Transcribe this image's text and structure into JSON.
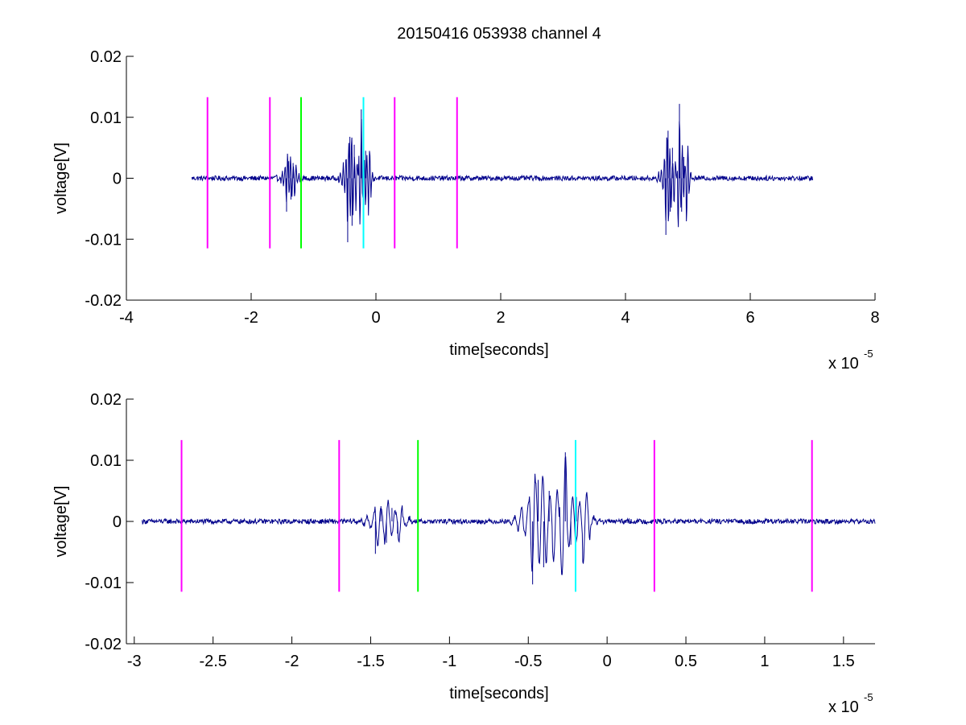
{
  "figure": {
    "title": "20150416 053938 channel 4"
  },
  "chart_data": [
    {
      "type": "line",
      "title": "20150416 053938 channel 4",
      "xlabel": "time[seconds]",
      "ylabel": "voltage[V]",
      "x_multiplier_label": "x 10",
      "x_multiplier_exponent": "-5",
      "x_scale": 1e-05,
      "xlim": [
        -4,
        8
      ],
      "ylim": [
        -0.02,
        0.02
      ],
      "x_ticks": [
        -4,
        -2,
        0,
        2,
        4,
        6,
        8
      ],
      "x_tick_labels": [
        "-4",
        "-2",
        "0",
        "2",
        "4",
        "6",
        "8"
      ],
      "y_ticks": [
        -0.02,
        -0.01,
        0,
        0.01,
        0.02
      ],
      "y_tick_labels": [
        "-0.02",
        "-0.01",
        "0",
        "0.01",
        "0.02"
      ],
      "series": [
        {
          "color": "#00008b",
          "x_range": [
            -2.95,
            7.0
          ],
          "baseline": 0,
          "noise_amplitude": 0.0004,
          "bursts": [
            {
              "x": -1.38,
              "peaks": [
                -0.0055,
                0.0028,
                -0.0035,
                0.0025
              ]
            },
            {
              "x": -0.4,
              "peaks": [
                -0.0105,
                0.0068,
                -0.0078,
                0.0055
              ]
            },
            {
              "x": -0.2,
              "peaks": [
                0.0113,
                -0.0035,
                0.0045
              ]
            },
            {
              "x": 4.7,
              "peaks": [
                -0.0093,
                0.0078,
                -0.0055,
                0.005
              ]
            },
            {
              "x": 4.9,
              "peaks": [
                0.0122,
                -0.0055,
                0.0035
              ]
            }
          ]
        }
      ],
      "markers": [
        {
          "x": -2.7,
          "color": "#ff00ff",
          "y_range": [
            -0.0115,
            0.0133
          ]
        },
        {
          "x": -1.7,
          "color": "#ff00ff",
          "y_range": [
            -0.0115,
            0.0133
          ]
        },
        {
          "x": -1.2,
          "color": "#00ff00",
          "y_range": [
            -0.0115,
            0.0133
          ]
        },
        {
          "x": -0.2,
          "color": "#00ffff",
          "y_range": [
            -0.0115,
            0.0133
          ]
        },
        {
          "x": 0.3,
          "color": "#ff00ff",
          "y_range": [
            -0.0115,
            0.0133
          ]
        },
        {
          "x": 1.3,
          "color": "#ff00ff",
          "y_range": [
            -0.0115,
            0.0133
          ]
        }
      ]
    },
    {
      "type": "line",
      "title": "",
      "xlabel": "time[seconds]",
      "ylabel": "voltage[V]",
      "x_multiplier_label": "x 10",
      "x_multiplier_exponent": "-5",
      "x_scale": 1e-05,
      "xlim": [
        -3.05,
        1.7
      ],
      "ylim": [
        -0.02,
        0.02
      ],
      "x_ticks": [
        -3,
        -2.5,
        -2,
        -1.5,
        -1,
        -0.5,
        0,
        0.5,
        1,
        1.5
      ],
      "x_tick_labels": [
        "-3",
        "-2.5",
        "-2",
        "-1.5",
        "-1",
        "-0.5",
        "0",
        "0.5",
        "1",
        "1.5"
      ],
      "y_ticks": [
        -0.02,
        -0.01,
        0,
        0.01,
        0.02
      ],
      "y_tick_labels": [
        "-0.02",
        "-0.01",
        "0",
        "0.01",
        "0.02"
      ],
      "series": [
        {
          "color": "#00008b",
          "x_range": [
            -2.95,
            1.7
          ],
          "baseline": 0,
          "noise_amplitude": 0.0004,
          "bursts": [
            {
              "x": -1.4,
              "peaks": [
                -0.0053,
                0.0025,
                -0.0035,
                0.0022,
                -0.002
              ]
            },
            {
              "x": -0.42,
              "peaks": [
                -0.0103,
                0.0068,
                -0.0075,
                0.005
              ]
            },
            {
              "x": -0.23,
              "peaks": [
                0.0113,
                -0.0038,
                0.004
              ]
            }
          ]
        }
      ],
      "markers": [
        {
          "x": -2.7,
          "color": "#ff00ff",
          "y_range": [
            -0.0115,
            0.0133
          ]
        },
        {
          "x": -1.7,
          "color": "#ff00ff",
          "y_range": [
            -0.0115,
            0.0133
          ]
        },
        {
          "x": -1.2,
          "color": "#00ff00",
          "y_range": [
            -0.0115,
            0.0133
          ]
        },
        {
          "x": -0.2,
          "color": "#00ffff",
          "y_range": [
            -0.0115,
            0.0133
          ]
        },
        {
          "x": 0.3,
          "color": "#ff00ff",
          "y_range": [
            -0.0115,
            0.0133
          ]
        },
        {
          "x": 1.3,
          "color": "#ff00ff",
          "y_range": [
            -0.0115,
            0.0133
          ]
        }
      ]
    }
  ]
}
